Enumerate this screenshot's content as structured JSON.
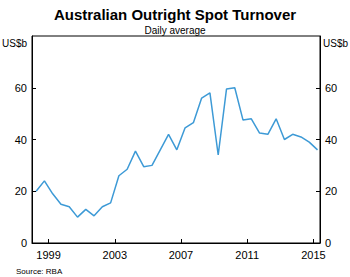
{
  "chart_data": {
    "type": "line",
    "title": "Australian Outright Spot Turnover",
    "subtitle": "Daily average",
    "y_label": "US$b",
    "source": "Source: RBA",
    "x": [
      1998.25,
      1998.75,
      1999.25,
      1999.75,
      2000.25,
      2000.75,
      2001.25,
      2001.75,
      2002.25,
      2002.75,
      2003.25,
      2003.75,
      2004.25,
      2004.75,
      2005.25,
      2005.75,
      2006.25,
      2006.75,
      2007.25,
      2007.75,
      2008.25,
      2008.75,
      2009.25,
      2009.75,
      2010.25,
      2010.75,
      2011.25,
      2011.75,
      2012.25,
      2012.75,
      2013.25,
      2013.75,
      2014.25,
      2014.75,
      2015.25
    ],
    "values": [
      20,
      24,
      19,
      15,
      14,
      10,
      13,
      10.5,
      14,
      15.5,
      26,
      28.5,
      35.5,
      29.5,
      30,
      36,
      42,
      36,
      44.5,
      46.5,
      56,
      58,
      34,
      59.5,
      60,
      47.5,
      48,
      42.5,
      42,
      48,
      40,
      42,
      41,
      39,
      36
    ],
    "color": "#3d9ad6",
    "xlim": [
      1998,
      2015.4
    ],
    "xticks": [
      1999,
      2003,
      2007,
      2011,
      2015
    ],
    "ylim": [
      0,
      80
    ],
    "yticks": [
      0,
      20,
      40,
      60
    ],
    "grid": false
  }
}
